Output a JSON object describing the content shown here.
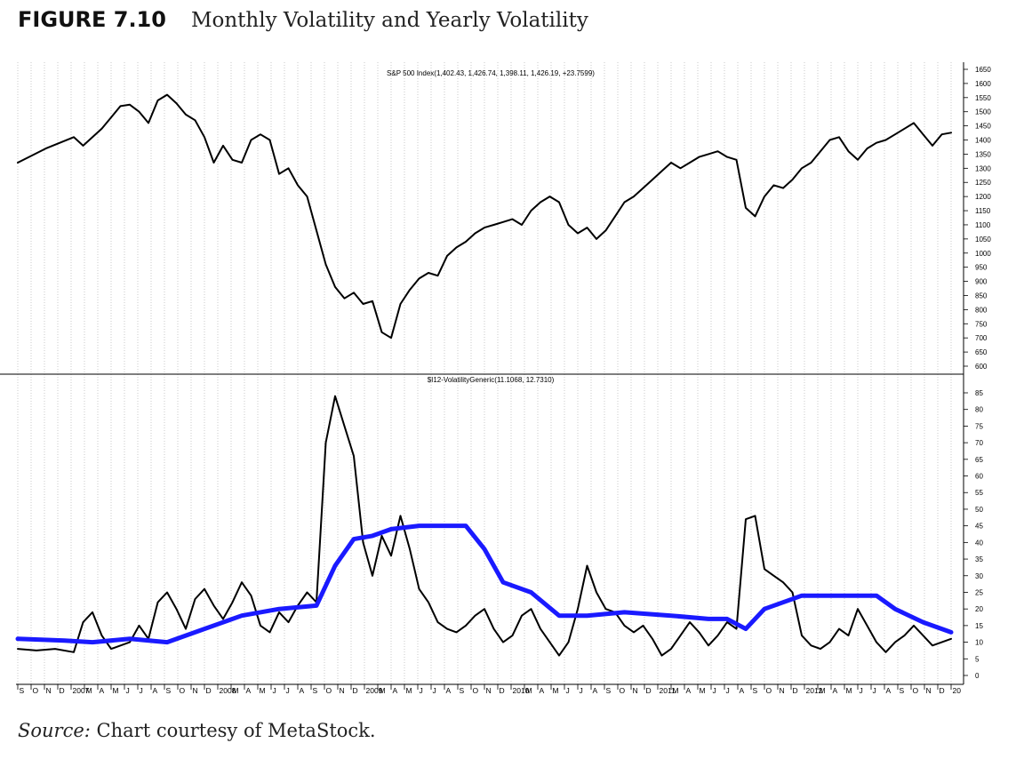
{
  "figure": {
    "label": "FIGURE 7.10",
    "caption": "Monthly Volatility and Yearly Volatility",
    "source_label": "Source:",
    "source_text": "Chart courtesy of MetaStock."
  },
  "chart_data": [
    {
      "type": "line",
      "title": "S&P 500 Index(1,402.43, 1,426.74, 1,398.11, 1,426.19, +23.7599)",
      "ylim": [
        600,
        1650
      ],
      "yticks": [
        600,
        650,
        700,
        750,
        800,
        850,
        900,
        950,
        1000,
        1050,
        1100,
        1150,
        1200,
        1250,
        1300,
        1350,
        1400,
        1450,
        1500,
        1550,
        1600,
        1650
      ],
      "grid": "vertical dotted",
      "series": [
        {
          "name": "S&P 500 Index",
          "color": "#000000",
          "points": [
            [
              0,
              1320
            ],
            [
              3,
              1370
            ],
            [
              6,
              1410
            ],
            [
              7,
              1380
            ],
            [
              9,
              1440
            ],
            [
              10,
              1480
            ],
            [
              11,
              1520
            ],
            [
              12,
              1525
            ],
            [
              13,
              1500
            ],
            [
              14,
              1460
            ],
            [
              15,
              1540
            ],
            [
              16,
              1560
            ],
            [
              17,
              1530
            ],
            [
              18,
              1490
            ],
            [
              19,
              1470
            ],
            [
              20,
              1410
            ],
            [
              21,
              1320
            ],
            [
              22,
              1380
            ],
            [
              23,
              1330
            ],
            [
              24,
              1320
            ],
            [
              25,
              1400
            ],
            [
              26,
              1420
            ],
            [
              27,
              1400
            ],
            [
              28,
              1280
            ],
            [
              29,
              1300
            ],
            [
              30,
              1240
            ],
            [
              31,
              1200
            ],
            [
              32,
              1080
            ],
            [
              33,
              960
            ],
            [
              34,
              880
            ],
            [
              35,
              840
            ],
            [
              36,
              860
            ],
            [
              37,
              820
            ],
            [
              38,
              830
            ],
            [
              39,
              720
            ],
            [
              40,
              700
            ],
            [
              41,
              820
            ],
            [
              42,
              870
            ],
            [
              43,
              910
            ],
            [
              44,
              930
            ],
            [
              45,
              920
            ],
            [
              46,
              990
            ],
            [
              47,
              1020
            ],
            [
              48,
              1040
            ],
            [
              49,
              1070
            ],
            [
              50,
              1090
            ],
            [
              51,
              1100
            ],
            [
              52,
              1110
            ],
            [
              53,
              1120
            ],
            [
              54,
              1100
            ],
            [
              55,
              1150
            ],
            [
              56,
              1180
            ],
            [
              57,
              1200
            ],
            [
              58,
              1180
            ],
            [
              59,
              1100
            ],
            [
              60,
              1070
            ],
            [
              61,
              1090
            ],
            [
              62,
              1050
            ],
            [
              63,
              1080
            ],
            [
              64,
              1130
            ],
            [
              65,
              1180
            ],
            [
              66,
              1200
            ],
            [
              67,
              1230
            ],
            [
              68,
              1260
            ],
            [
              69,
              1290
            ],
            [
              70,
              1320
            ],
            [
              71,
              1300
            ],
            [
              72,
              1320
            ],
            [
              73,
              1340
            ],
            [
              74,
              1350
            ],
            [
              75,
              1360
            ],
            [
              76,
              1340
            ],
            [
              77,
              1330
            ],
            [
              78,
              1160
            ],
            [
              79,
              1130
            ],
            [
              80,
              1200
            ],
            [
              81,
              1240
            ],
            [
              82,
              1230
            ],
            [
              83,
              1260
            ],
            [
              84,
              1300
            ],
            [
              85,
              1320
            ],
            [
              86,
              1360
            ],
            [
              87,
              1400
            ],
            [
              88,
              1410
            ],
            [
              89,
              1360
            ],
            [
              90,
              1330
            ],
            [
              91,
              1370
            ],
            [
              92,
              1390
            ],
            [
              93,
              1400
            ],
            [
              94,
              1420
            ],
            [
              95,
              1440
            ],
            [
              96,
              1460
            ],
            [
              97,
              1420
            ],
            [
              98,
              1380
            ],
            [
              99,
              1420
            ],
            [
              100,
              1426
            ]
          ]
        }
      ]
    },
    {
      "type": "line",
      "title": "$I12-VolatilityGeneric(11.1068, 12.7310)",
      "ylim": [
        0,
        85
      ],
      "yticks": [
        0,
        5,
        10,
        15,
        20,
        25,
        30,
        35,
        40,
        45,
        50,
        55,
        60,
        65,
        70,
        75,
        80,
        85
      ],
      "xlabel_ticks": [
        "S",
        "O",
        "N",
        "D",
        "2007",
        "M",
        "A",
        "M",
        "J",
        "J",
        "A",
        "S",
        "O",
        "N",
        "D",
        "2008",
        "M",
        "A",
        "M",
        "J",
        "J",
        "A",
        "S",
        "O",
        "N",
        "D",
        "2009",
        "M",
        "A",
        "M",
        "J",
        "J",
        "A",
        "S",
        "O",
        "N",
        "D",
        "2010",
        "M",
        "A",
        "M",
        "J",
        "J",
        "A",
        "S",
        "O",
        "N",
        "D",
        "2011",
        "M",
        "A",
        "M",
        "J",
        "J",
        "A",
        "S",
        "O",
        "N",
        "D",
        "2012",
        "M",
        "A",
        "M",
        "J",
        "J",
        "A",
        "S",
        "O",
        "N",
        "D",
        "20"
      ],
      "series": [
        {
          "name": "Monthly Volatility",
          "color": "#000000",
          "points": [
            [
              0,
              8
            ],
            [
              2,
              7.5
            ],
            [
              4,
              8
            ],
            [
              6,
              7
            ],
            [
              7,
              16
            ],
            [
              8,
              19
            ],
            [
              9,
              12
            ],
            [
              10,
              8
            ],
            [
              12,
              10
            ],
            [
              13,
              15
            ],
            [
              14,
              11
            ],
            [
              15,
              22
            ],
            [
              16,
              25
            ],
            [
              17,
              20
            ],
            [
              18,
              14
            ],
            [
              19,
              23
            ],
            [
              20,
              26
            ],
            [
              21,
              21
            ],
            [
              22,
              17
            ],
            [
              23,
              22
            ],
            [
              24,
              28
            ],
            [
              25,
              24
            ],
            [
              26,
              15
            ],
            [
              27,
              13
            ],
            [
              28,
              19
            ],
            [
              29,
              16
            ],
            [
              30,
              21
            ],
            [
              31,
              25
            ],
            [
              32,
              22
            ],
            [
              33,
              70
            ],
            [
              34,
              84
            ],
            [
              35,
              75
            ],
            [
              36,
              66
            ],
            [
              37,
              40
            ],
            [
              38,
              30
            ],
            [
              39,
              42
            ],
            [
              40,
              36
            ],
            [
              41,
              48
            ],
            [
              42,
              38
            ],
            [
              43,
              26
            ],
            [
              44,
              22
            ],
            [
              45,
              16
            ],
            [
              46,
              14
            ],
            [
              47,
              13
            ],
            [
              48,
              15
            ],
            [
              49,
              18
            ],
            [
              50,
              20
            ],
            [
              51,
              14
            ],
            [
              52,
              10
            ],
            [
              53,
              12
            ],
            [
              54,
              18
            ],
            [
              55,
              20
            ],
            [
              56,
              14
            ],
            [
              57,
              10
            ],
            [
              58,
              6
            ],
            [
              59,
              10
            ],
            [
              60,
              20
            ],
            [
              61,
              33
            ],
            [
              62,
              25
            ],
            [
              63,
              20
            ],
            [
              64,
              19
            ],
            [
              65,
              15
            ],
            [
              66,
              13
            ],
            [
              67,
              15
            ],
            [
              68,
              11
            ],
            [
              69,
              6
            ],
            [
              70,
              8
            ],
            [
              71,
              12
            ],
            [
              72,
              16
            ],
            [
              73,
              13
            ],
            [
              74,
              9
            ],
            [
              75,
              12
            ],
            [
              76,
              16
            ],
            [
              77,
              14
            ],
            [
              78,
              47
            ],
            [
              79,
              48
            ],
            [
              80,
              32
            ],
            [
              81,
              30
            ],
            [
              82,
              28
            ],
            [
              83,
              25
            ],
            [
              84,
              12
            ],
            [
              85,
              9
            ],
            [
              86,
              8
            ],
            [
              87,
              10
            ],
            [
              88,
              14
            ],
            [
              89,
              12
            ],
            [
              90,
              20
            ],
            [
              91,
              15
            ],
            [
              92,
              10
            ],
            [
              93,
              7
            ],
            [
              94,
              10
            ],
            [
              95,
              12
            ],
            [
              96,
              15
            ],
            [
              97,
              12
            ],
            [
              98,
              9
            ],
            [
              99,
              10
            ],
            [
              100,
              11
            ]
          ]
        },
        {
          "name": "Yearly Volatility",
          "color": "#1a1aff",
          "points": [
            [
              0,
              11
            ],
            [
              5,
              10.5
            ],
            [
              8,
              10
            ],
            [
              12,
              11
            ],
            [
              16,
              10
            ],
            [
              20,
              14
            ],
            [
              24,
              18
            ],
            [
              28,
              20
            ],
            [
              32,
              21
            ],
            [
              34,
              33
            ],
            [
              36,
              41
            ],
            [
              38,
              42
            ],
            [
              40,
              44
            ],
            [
              43,
              45
            ],
            [
              46,
              45
            ],
            [
              48,
              45
            ],
            [
              50,
              38
            ],
            [
              52,
              28
            ],
            [
              55,
              25
            ],
            [
              58,
              18
            ],
            [
              61,
              18
            ],
            [
              65,
              19
            ],
            [
              70,
              18
            ],
            [
              74,
              17
            ],
            [
              76,
              17
            ],
            [
              78,
              14
            ],
            [
              80,
              20
            ],
            [
              82,
              22
            ],
            [
              84,
              24
            ],
            [
              88,
              24
            ],
            [
              90,
              24
            ],
            [
              92,
              24
            ],
            [
              94,
              20
            ],
            [
              97,
              16
            ],
            [
              100,
              13
            ]
          ]
        }
      ]
    }
  ]
}
